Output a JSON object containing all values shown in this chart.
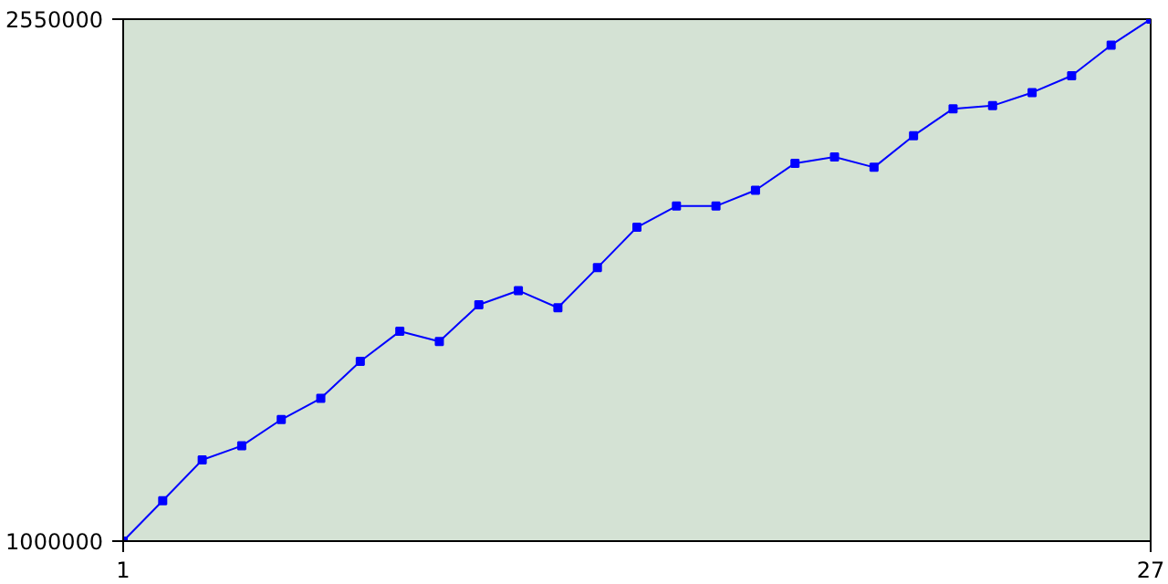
{
  "chart_data": {
    "type": "line",
    "x": [
      1,
      2,
      3,
      4,
      5,
      6,
      7,
      8,
      9,
      10,
      11,
      12,
      13,
      14,
      15,
      16,
      17,
      18,
      19,
      20,
      21,
      22,
      23,
      24,
      25,
      26,
      27
    ],
    "series": [
      {
        "color": "#0000ff",
        "values": [
          1000000,
          1120000,
          1241000,
          1283000,
          1361000,
          1424000,
          1534000,
          1623000,
          1593000,
          1702000,
          1744000,
          1693000,
          1812000,
          1932000,
          1995000,
          1995000,
          2042000,
          2122000,
          2141000,
          2110000,
          2204000,
          2284000,
          2293000,
          2332000,
          2382000,
          2473000,
          2550000
        ]
      }
    ],
    "xlim": [
      1,
      27
    ],
    "xticks": [
      1,
      27
    ],
    "ylim": [
      1000000,
      2550000
    ],
    "yticks": [
      1000000,
      2550000
    ],
    "marker": "square",
    "line_style": "solid"
  }
}
